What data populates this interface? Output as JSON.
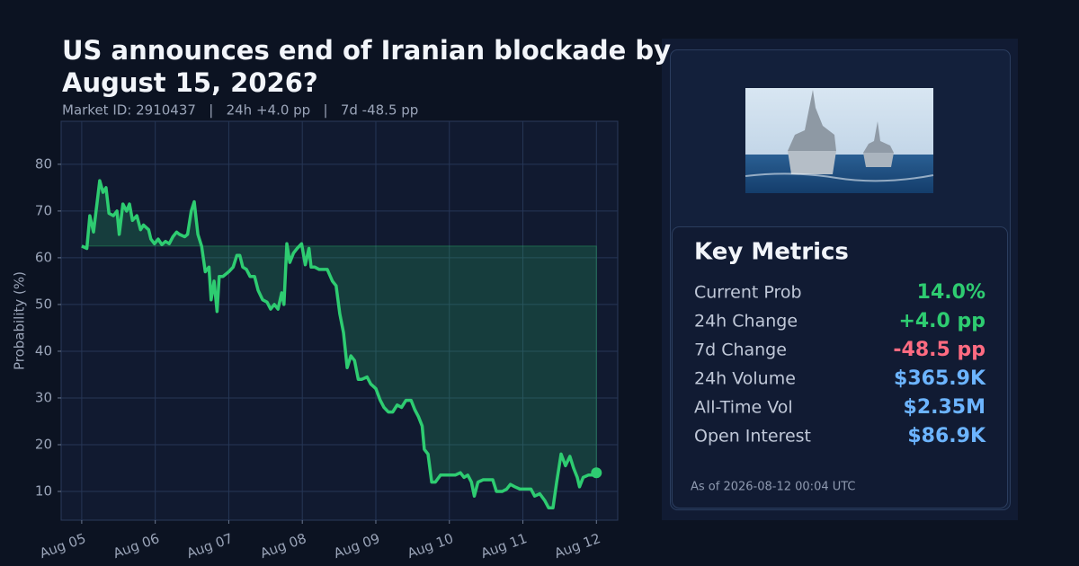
{
  "chart_data": {
    "type": "line",
    "title": "US announces end of Iranian blockade by August 15, 2026?",
    "subtitle": "Market ID: 2910437   |   24h +4.0 pp   |   7d -48.5 pp",
    "ylabel": "Probability (%)",
    "x": [
      5.0,
      5.07,
      5.11,
      5.16,
      5.21,
      5.245,
      5.29,
      5.33,
      5.37,
      5.43,
      5.48,
      5.51,
      5.56,
      5.61,
      5.65,
      5.69,
      5.75,
      5.8,
      5.84,
      5.91,
      5.94,
      5.99,
      6.04,
      6.09,
      6.14,
      6.19,
      6.24,
      6.29,
      6.33,
      6.4,
      6.44,
      6.49,
      6.53,
      6.58,
      6.63,
      6.68,
      6.73,
      6.76,
      6.8,
      6.84,
      6.87,
      6.92,
      7.0,
      7.06,
      7.11,
      7.15,
      7.19,
      7.24,
      7.29,
      7.35,
      7.4,
      7.46,
      7.52,
      7.57,
      7.62,
      7.67,
      7.72,
      7.75,
      7.79,
      7.83,
      7.88,
      7.93,
      7.99,
      8.04,
      8.09,
      8.12,
      8.17,
      8.23,
      8.29,
      8.34,
      8.41,
      8.46,
      8.51,
      8.56,
      8.61,
      8.66,
      8.71,
      8.76,
      8.81,
      8.88,
      8.93,
      9.0,
      9.06,
      9.11,
      9.17,
      9.23,
      9.29,
      9.35,
      9.41,
      9.48,
      9.53,
      9.58,
      9.63,
      9.66,
      9.71,
      9.76,
      9.81,
      9.88,
      9.98,
      10.08,
      10.15,
      10.2,
      10.25,
      10.3,
      10.34,
      10.39,
      10.46,
      10.53,
      10.59,
      10.64,
      10.72,
      10.78,
      10.83,
      10.89,
      10.96,
      11.03,
      11.11,
      11.16,
      11.23,
      11.3,
      11.35,
      11.41,
      11.46,
      11.52,
      11.58,
      11.64,
      11.69,
      11.74,
      11.77,
      11.82,
      11.89,
      11.96,
      12.0
    ],
    "series": [
      {
        "name": "Probability",
        "color": "#2ecc71",
        "values": [
          62.5,
          62,
          69,
          65.5,
          72,
          76.5,
          74,
          75,
          69.5,
          69,
          70,
          65,
          71.5,
          70,
          71.5,
          68,
          69,
          66,
          67,
          66,
          64,
          63,
          64,
          62.8,
          63.5,
          63,
          64.5,
          65.5,
          65,
          64.5,
          65,
          70,
          72,
          65,
          62.5,
          57,
          58,
          51,
          55,
          48.5,
          56,
          56,
          57,
          58,
          60.5,
          60.5,
          58,
          57.5,
          56,
          56,
          53,
          51,
          50.5,
          49,
          50,
          49,
          52.5,
          50,
          63,
          59,
          61,
          62,
          63,
          58.5,
          62,
          58,
          58,
          57.5,
          57.5,
          57.5,
          55,
          54,
          48,
          44,
          36.5,
          39,
          38,
          34,
          34,
          34.5,
          33,
          32,
          29.5,
          28,
          27,
          27,
          28.5,
          28,
          29.5,
          29.5,
          27.5,
          26,
          24,
          19,
          18,
          12,
          12,
          13.5,
          13.5,
          13.5,
          14,
          13,
          13.5,
          12,
          9,
          12,
          12.5,
          12.5,
          12.5,
          10,
          10,
          10.5,
          11.5,
          11,
          10.5,
          10.5,
          10.5,
          9,
          9.5,
          8,
          6.5,
          6.5,
          12,
          18,
          15.5,
          17.5,
          15,
          13,
          11,
          13,
          13.5,
          13.5,
          14
        ]
      }
    ],
    "xlim": [
      4.72,
      12.29
    ],
    "xticks": [
      {
        "value": 5,
        "label": "Aug 05"
      },
      {
        "value": 6,
        "label": "Aug 06"
      },
      {
        "value": 7,
        "label": "Aug 07"
      },
      {
        "value": 8,
        "label": "Aug 08"
      },
      {
        "value": 9,
        "label": "Aug 09"
      },
      {
        "value": 10,
        "label": "Aug 10"
      },
      {
        "value": 11,
        "label": "Aug 11"
      },
      {
        "value": 12,
        "label": "Aug 12"
      }
    ],
    "ylim": [
      3.85,
      89.2
    ],
    "yticks": [
      10,
      20,
      30,
      40,
      50,
      60,
      70,
      80
    ],
    "grid": true
  },
  "metrics": {
    "title": "Key Metrics",
    "rows": [
      {
        "label": "Current Prob",
        "value": "14.0%",
        "color": "#2ecc71"
      },
      {
        "label": "24h Change",
        "value": "+4.0 pp",
        "color": "#2ecc71"
      },
      {
        "label": "7d Change",
        "value": "-48.5 pp",
        "color": "#ff6b81"
      },
      {
        "label": "24h Volume",
        "value": "$365.9K",
        "color": "#6cb4ff"
      },
      {
        "label": "All-Time Vol",
        "value": "$2.35M",
        "color": "#6cb4ff"
      },
      {
        "label": "Open Interest",
        "value": "$86.9K",
        "color": "#6cb4ff"
      }
    ],
    "footer": "As of 2026-08-12 00:04 UTC"
  }
}
